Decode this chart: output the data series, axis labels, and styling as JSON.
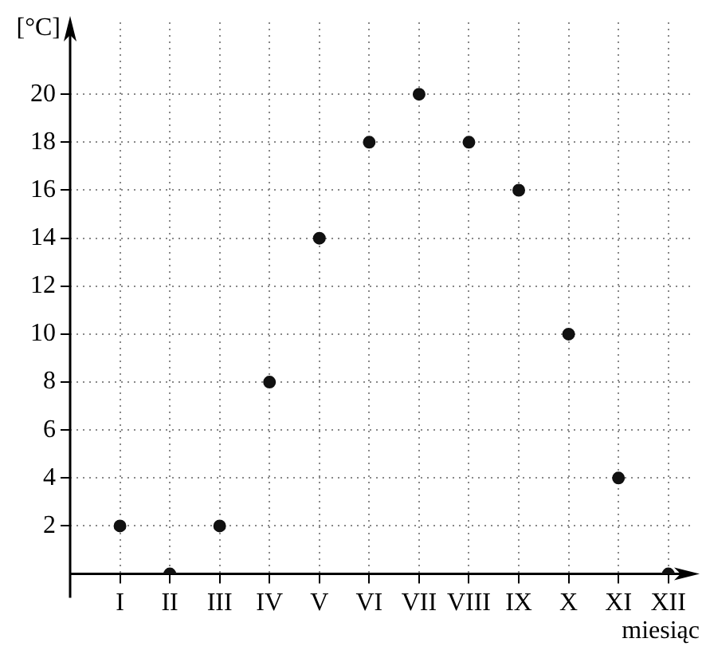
{
  "chart_data": {
    "type": "scatter",
    "ylabel": "[°C]",
    "xlabel": "miesiąc",
    "categories": [
      "I",
      "II",
      "III",
      "IV",
      "V",
      "VI",
      "VII",
      "VIII",
      "IX",
      "X",
      "XI",
      "XII"
    ],
    "series": [
      {
        "color": "#111111",
        "values": [
          2,
          0,
          2,
          8,
          14,
          18,
          20,
          18,
          16,
          10,
          4,
          0
        ]
      }
    ],
    "ylim": [
      0,
      23
    ],
    "yticks": [
      2,
      4,
      6,
      8,
      10,
      12,
      14,
      16,
      18,
      20
    ],
    "grid": true,
    "marker": "circle",
    "legend": false
  }
}
